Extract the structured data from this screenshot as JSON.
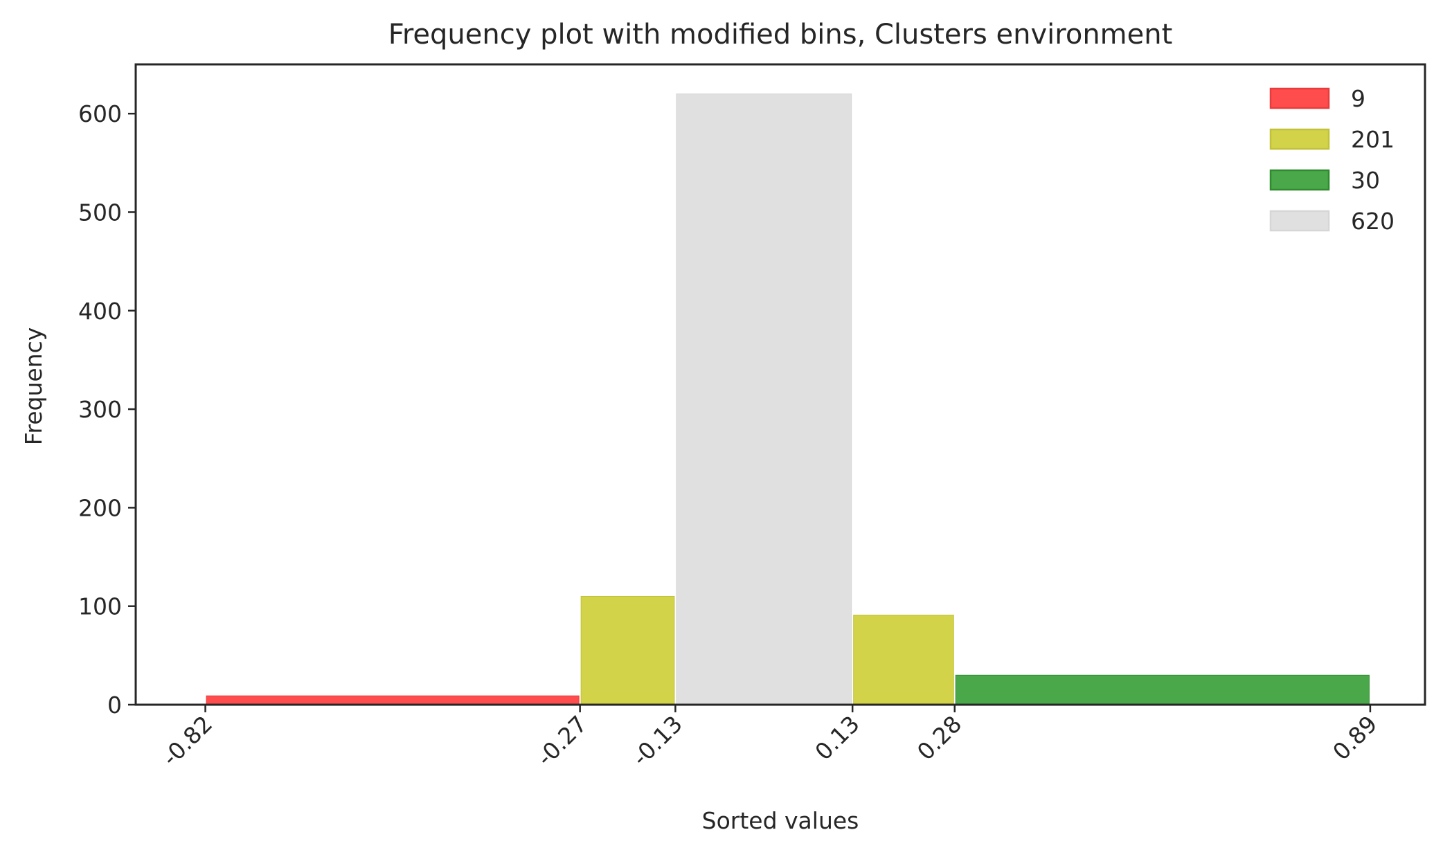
{
  "chart_data": {
    "type": "bar",
    "title": "Frequency plot with modified bins, Clusters environment",
    "xlabel": "Sorted values",
    "ylabel": "Frequency",
    "ylim": [
      0,
      650
    ],
    "xlim": [
      -0.9222,
      0.9704
    ],
    "grid": false,
    "legend_position": "top-right",
    "x_ticks": [
      "-0.82",
      "-0.27",
      "-0.13",
      "0.13",
      "0.28",
      "0.89"
    ],
    "y_ticks": [
      "0",
      "100",
      "200",
      "300",
      "400",
      "500",
      "600"
    ],
    "bins": [
      {
        "start": -0.82,
        "end": -0.27,
        "value": 9,
        "series": 0
      },
      {
        "start": -0.27,
        "end": -0.13,
        "value": 110,
        "series": 1
      },
      {
        "start": -0.13,
        "end": 0.13,
        "value": 620,
        "series": 3
      },
      {
        "start": 0.13,
        "end": 0.28,
        "value": 91,
        "series": 1
      },
      {
        "start": 0.28,
        "end": 0.89,
        "value": 30,
        "series": 2
      }
    ],
    "series": [
      {
        "name": "9",
        "color": "#ff4d4d",
        "edge": "#e83c3c"
      },
      {
        "name": "201",
        "color": "#d3d34a",
        "edge": "#c2c23a"
      },
      {
        "name": "30",
        "color": "#4aa84a",
        "edge": "#2e8c2e"
      },
      {
        "name": "620",
        "color": "#e0e0e0",
        "edge": "#d6d6d6"
      }
    ]
  }
}
